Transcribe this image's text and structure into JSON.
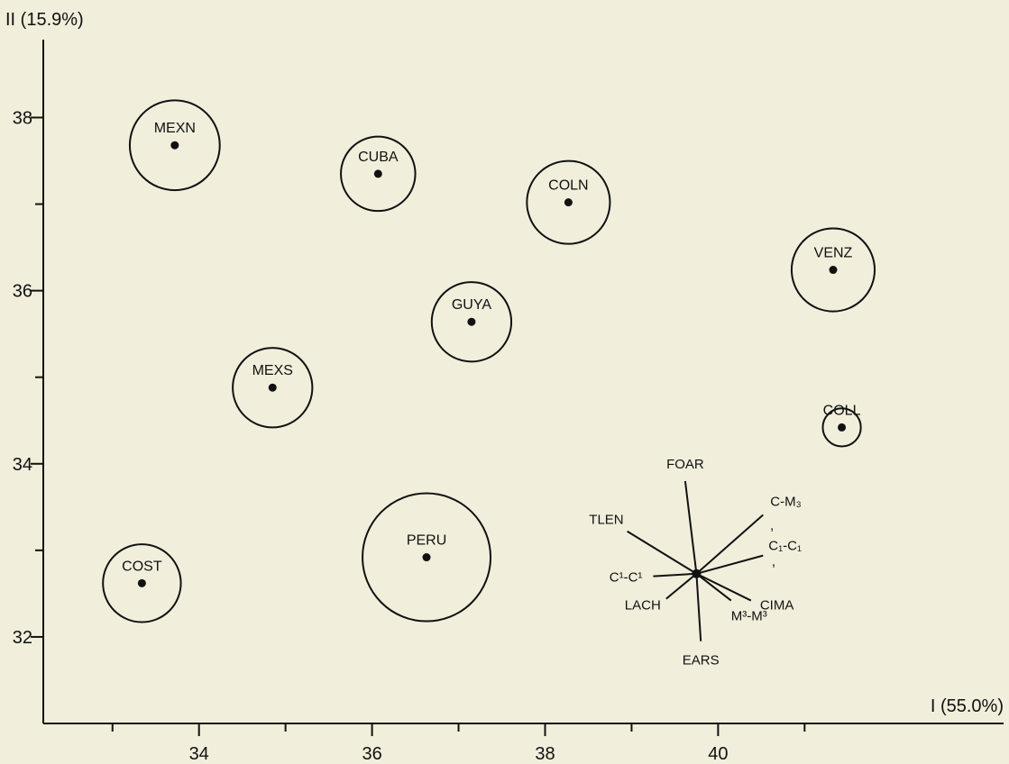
{
  "chart_data": {
    "type": "scatter",
    "xlabel": "I (55.0%)",
    "ylabel": "II (15.9%)",
    "xlim": [
      32.2,
      43.3
    ],
    "ylim": [
      31.0,
      38.9
    ],
    "xticks": [
      34,
      36,
      38,
      40
    ],
    "yticks": [
      32,
      34,
      36,
      38
    ],
    "x_minor_ticks": [
      33,
      35,
      37,
      39,
      41
    ],
    "y_minor_ticks": [
      33,
      35,
      37
    ],
    "grid": false,
    "legend": "none",
    "points": [
      {
        "label": "MEXN",
        "x": 33.72,
        "y": 37.68,
        "radius": 0.52
      },
      {
        "label": "CUBA",
        "x": 36.07,
        "y": 37.35,
        "radius": 0.43
      },
      {
        "label": "COLN",
        "x": 38.27,
        "y": 37.02,
        "radius": 0.48
      },
      {
        "label": "VENZ",
        "x": 41.33,
        "y": 36.24,
        "radius": 0.48
      },
      {
        "label": "GUYA",
        "x": 37.15,
        "y": 35.64,
        "radius": 0.46
      },
      {
        "label": "MEXS",
        "x": 34.85,
        "y": 34.88,
        "radius": 0.46
      },
      {
        "label": "COLL",
        "x": 41.43,
        "y": 34.42,
        "radius": 0.22
      },
      {
        "label": "PERU",
        "x": 36.63,
        "y": 32.92,
        "radius": 0.74
      },
      {
        "label": "COST",
        "x": 33.34,
        "y": 32.62,
        "radius": 0.45
      }
    ],
    "vectors": {
      "origin": {
        "x": 39.75,
        "y": 32.73
      },
      "items": [
        {
          "label": "FOAR",
          "x": 39.62,
          "y": 33.8
        },
        {
          "label": "TLEN",
          "x": 38.95,
          "y": 33.22
        },
        {
          "label": "C-M₃",
          "x": 40.52,
          "y": 33.41
        },
        {
          "label": "C₁-C₁",
          "x": 40.52,
          "y": 32.94
        },
        {
          "label": "C¹-C¹",
          "x": 39.25,
          "y": 32.7
        },
        {
          "label": "LACH",
          "x": 39.4,
          "y": 32.44
        },
        {
          "label": "CIMA",
          "x": 40.38,
          "y": 32.42
        },
        {
          "label": "M³-M³",
          "x": 40.15,
          "y": 32.42
        },
        {
          "label": "EARS",
          "x": 39.8,
          "y": 31.95
        }
      ]
    },
    "annotations": [
      ",",
      ","
    ]
  },
  "colors": {
    "background": "#f1eedb",
    "ink": "#111111"
  }
}
